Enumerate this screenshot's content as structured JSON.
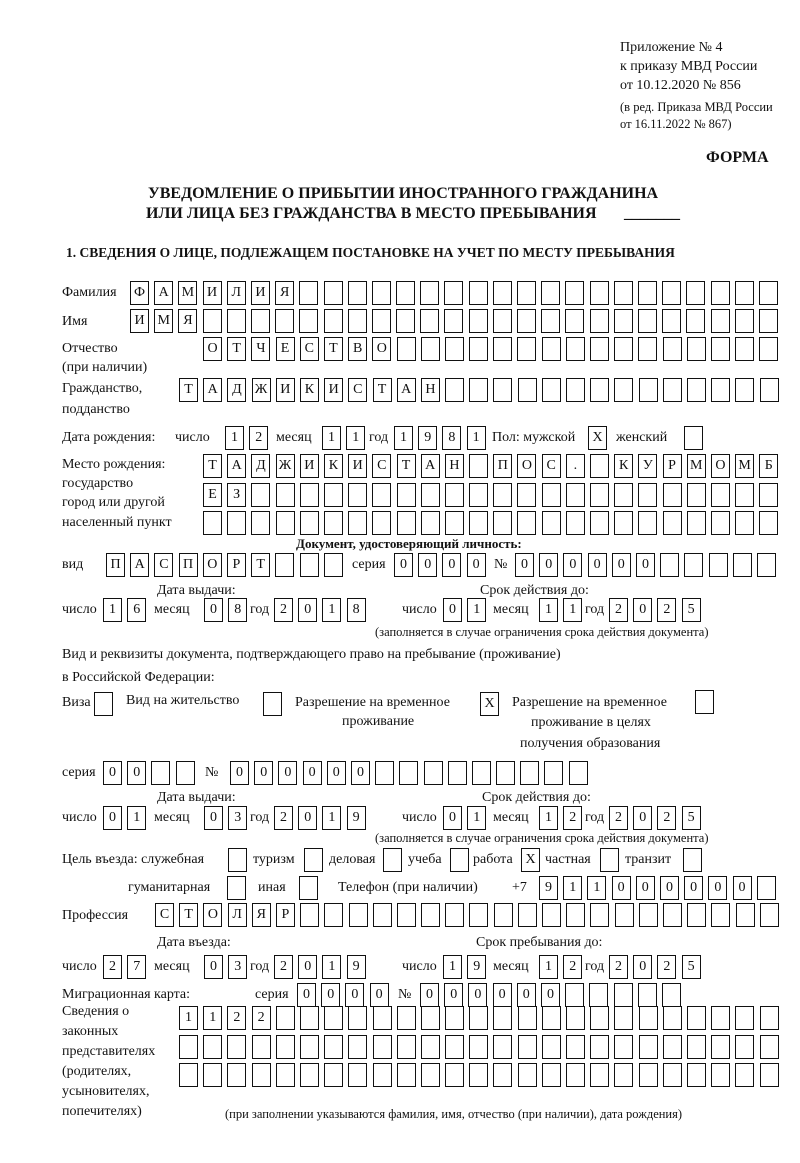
{
  "header": {
    "appendix": [
      "Приложение № 4",
      "к приказу МВД России",
      "от 10.12.2020 № 856",
      "(в ред. Приказа МВД России",
      "от 16.11.2022 № 867)"
    ],
    "form_label": "ФОРМА",
    "title": [
      "УВЕДОМЛЕНИЕ О ПРИБЫТИИ ИНОСТРАННОГО ГРАЖДАНИНА",
      "ИЛИ ЛИЦА БЕЗ ГРАЖДАНСТВА В МЕСТО ПРЕБЫВАНИЯ"
    ],
    "title_blank": "_______",
    "section1": "1. СВЕДЕНИЯ О ЛИЦЕ, ПОДЛЕЖАЩЕМ ПОСТАНОВКЕ НА УЧЕТ ПО МЕСТУ ПРЕБЫВАНИЯ"
  },
  "labels": {
    "day": "число",
    "month": "месяц",
    "year": "год",
    "series": "серия",
    "number": "№",
    "issue_date": "Дата выдачи:",
    "expiry_date": "Срок действия до:",
    "expiry_note": "(заполняется в случае ограничения срока действия документа)"
  },
  "person": {
    "surname": {
      "label": "Фамилия",
      "value": "ФАМИЛИЯ"
    },
    "name": {
      "label": "Имя",
      "value": "ИМЯ"
    },
    "patronymic": {
      "label": [
        "Отчество",
        "(при наличии)"
      ],
      "value": "ОТЧЕСТВО"
    },
    "citizenship": {
      "label": [
        "Гражданство,",
        "подданство"
      ],
      "value": "ТАДЖИКИСТАН"
    }
  },
  "birth": {
    "label": "Дата рождения:",
    "day": "12",
    "month": "11",
    "year": "1981",
    "sex_label": "Пол: мужской",
    "male": "X",
    "female_label": "женский",
    "female": ""
  },
  "birthplace": {
    "label": [
      "Место рождения:",
      "государство",
      "город или другой",
      "населенный пункт"
    ],
    "rows": [
      "ТАДЖИКИСТАН ПОС. КУРМОМБ",
      "ЕЗ",
      ""
    ]
  },
  "id_doc": {
    "heading": "Документ, удостоверяющий личность:",
    "type_label": "вид",
    "type": "ПАСПОРТ",
    "series": "0000",
    "number": "000000",
    "issue": {
      "day": "16",
      "month": "08",
      "year": "2018"
    },
    "expiry": {
      "day": "01",
      "month": "11",
      "year": "2025"
    }
  },
  "stay_doc": {
    "heading": [
      "Вид и реквизиты документа, подтверждающего право на пребывание (проживание)",
      "в Российской Федерации:"
    ],
    "visa": {
      "label": "Виза",
      "value": ""
    },
    "residence": {
      "label": "Вид на жительство",
      "value": ""
    },
    "temp_permit": {
      "label": [
        "Разрешение на временное",
        "проживание"
      ],
      "value": "X"
    },
    "temp_permit_edu": {
      "label": [
        "Разрешение на временное",
        "проживание в целях",
        "получения образования"
      ],
      "value": ""
    },
    "series": "00",
    "number": "000000",
    "issue": {
      "day": "01",
      "month": "03",
      "year": "2019"
    },
    "expiry": {
      "day": "01",
      "month": "12",
      "year": "2025"
    }
  },
  "purpose": {
    "label": "Цель въезда: служебная",
    "options": [
      {
        "label": "служебная",
        "value": ""
      },
      {
        "label": "туризм",
        "value": ""
      },
      {
        "label": "деловая",
        "value": ""
      },
      {
        "label": "учеба",
        "value": ""
      },
      {
        "label": "работа",
        "value": "X"
      },
      {
        "label": "частная",
        "value": ""
      },
      {
        "label": "транзит",
        "value": ""
      },
      {
        "label": "гуманитарная",
        "value": ""
      },
      {
        "label": "иная",
        "value": ""
      }
    ]
  },
  "phone": {
    "label": "Телефон (при наличии)",
    "prefix": "+7",
    "value": "911000000"
  },
  "profession": {
    "label": "Профессия",
    "value": "СТОЛЯР"
  },
  "entry": {
    "entry_label": "Дата въезда:",
    "until_label": "Срок пребывания до:",
    "entry": {
      "day": "27",
      "month": "03",
      "year": "2019"
    },
    "until": {
      "day": "19",
      "month": "12",
      "year": "2025"
    }
  },
  "migration_card": {
    "label": "Миграционная карта:",
    "series": "0000",
    "number": "000000"
  },
  "representatives": {
    "label": [
      "Сведения о",
      "законных",
      "представителях",
      "(родителях,",
      "усыновителях,",
      "попечителях)"
    ],
    "rows": [
      "1122",
      "",
      ""
    ],
    "note": "(при заполнении указываются фамилия, имя, отчество (при наличии), дата рождения)"
  }
}
